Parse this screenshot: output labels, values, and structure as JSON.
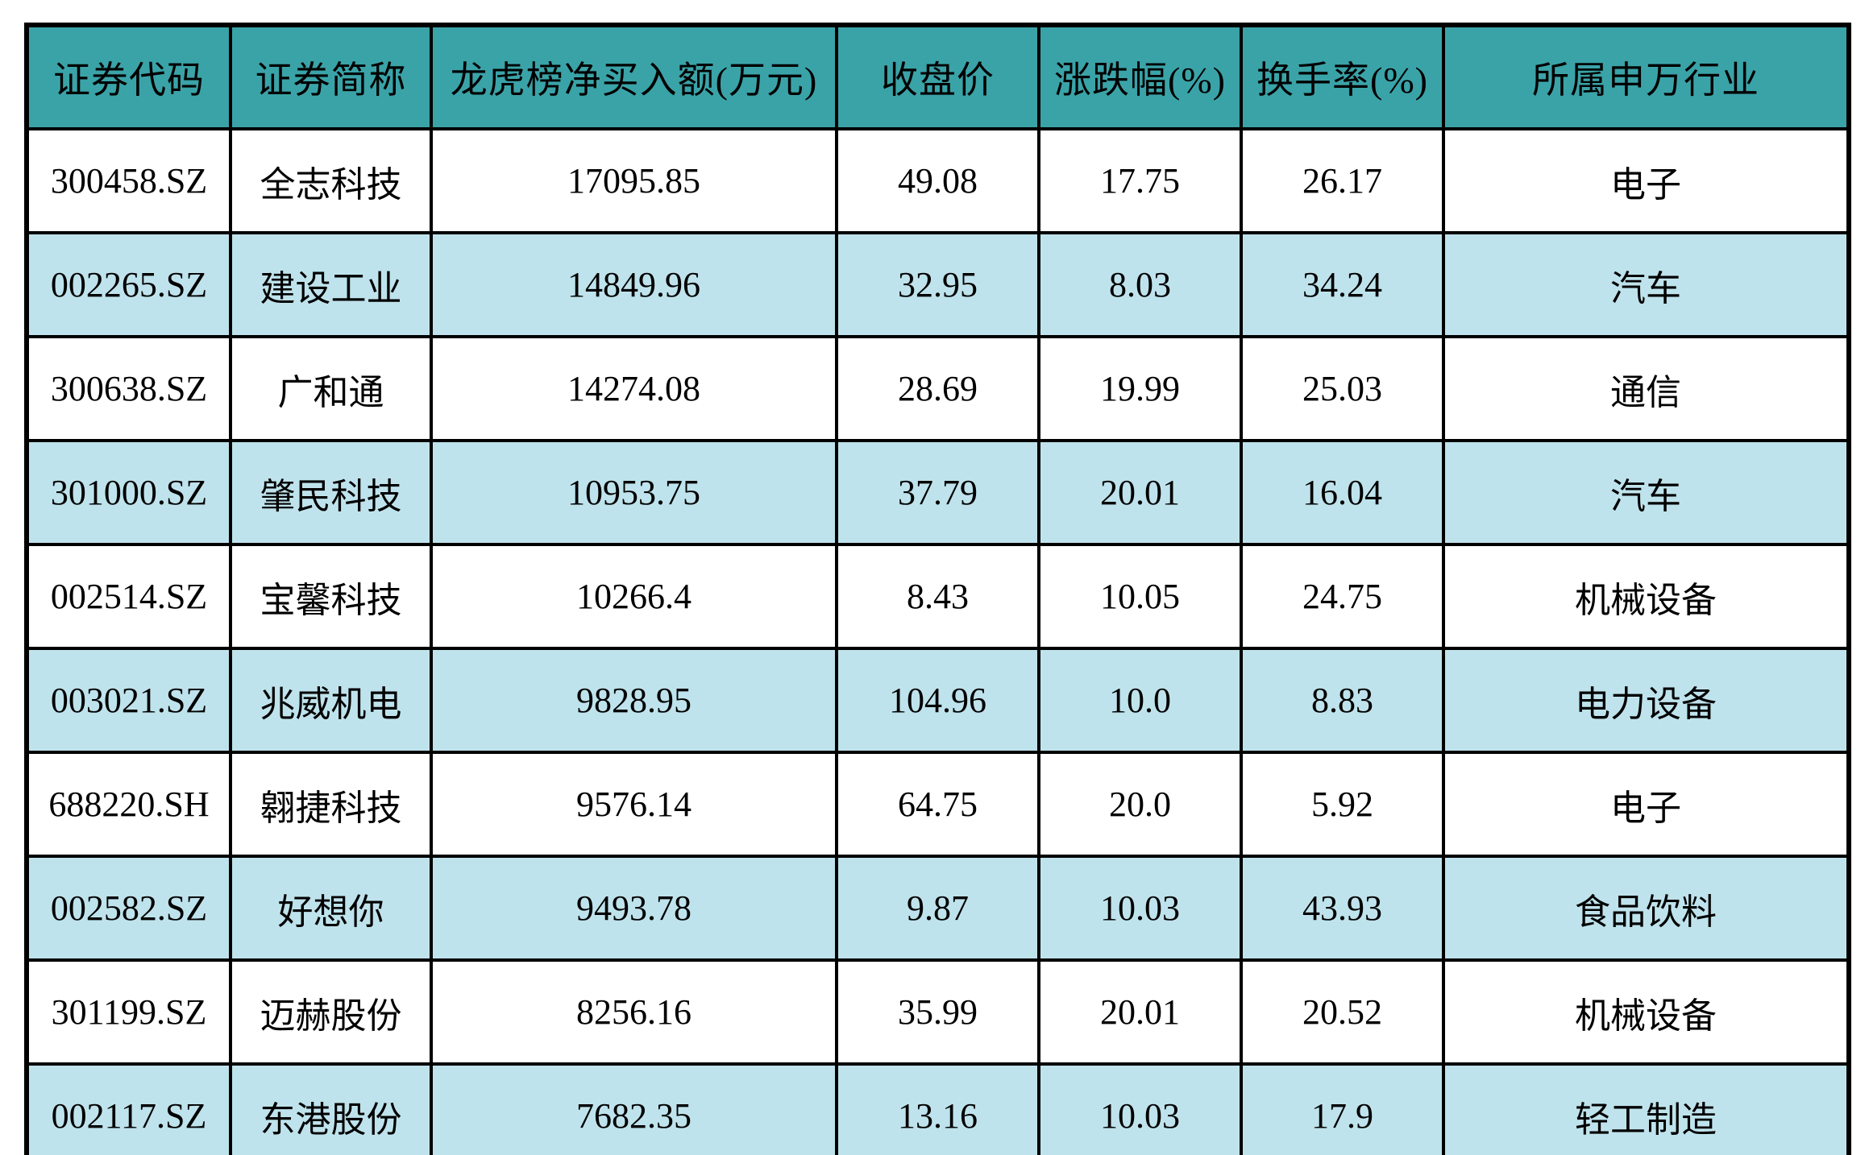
{
  "chart_data": {
    "type": "table",
    "columns": [
      {
        "key": "code",
        "label": "证券代码"
      },
      {
        "key": "name",
        "label": "证券简称"
      },
      {
        "key": "netbuy",
        "label": "龙虎榜净买入额(万元)"
      },
      {
        "key": "close",
        "label": "收盘价"
      },
      {
        "key": "change",
        "label": "涨跌幅(%)"
      },
      {
        "key": "turnover",
        "label": "换手率(%)"
      },
      {
        "key": "industry",
        "label": "所属申万行业"
      }
    ],
    "rows": [
      [
        "300458.SZ",
        "全志科技",
        "17095.85",
        "49.08",
        "17.75",
        "26.17",
        "电子"
      ],
      [
        "002265.SZ",
        "建设工业",
        "14849.96",
        "32.95",
        "8.03",
        "34.24",
        "汽车"
      ],
      [
        "300638.SZ",
        "广和通",
        "14274.08",
        "28.69",
        "19.99",
        "25.03",
        "通信"
      ],
      [
        "301000.SZ",
        "肇民科技",
        "10953.75",
        "37.79",
        "20.01",
        "16.04",
        "汽车"
      ],
      [
        "002514.SZ",
        "宝馨科技",
        "10266.4",
        "8.43",
        "10.05",
        "24.75",
        "机械设备"
      ],
      [
        "003021.SZ",
        "兆威机电",
        "9828.95",
        "104.96",
        "10.0",
        "8.83",
        "电力设备"
      ],
      [
        "688220.SH",
        "翱捷科技",
        "9576.14",
        "64.75",
        "20.0",
        "5.92",
        "电子"
      ],
      [
        "002582.SZ",
        "好想你",
        "9493.78",
        "9.87",
        "10.03",
        "43.93",
        "食品饮料"
      ],
      [
        "301199.SZ",
        "迈赫股份",
        "8256.16",
        "35.99",
        "20.01",
        "20.52",
        "机械设备"
      ],
      [
        "002117.SZ",
        "东港股份",
        "7682.35",
        "13.16",
        "10.03",
        "17.9",
        "轻工制造"
      ]
    ],
    "layout": {
      "legend": "none",
      "grid": "full black cell borders",
      "striping": "alternate rows shaded starting with row 2"
    },
    "colors": {
      "header_bg": "#3AA3A8",
      "row_bg": "#FFFFFF",
      "alt_row_bg": "#BFE3EC",
      "border": "#000000",
      "text": "#000000"
    }
  }
}
